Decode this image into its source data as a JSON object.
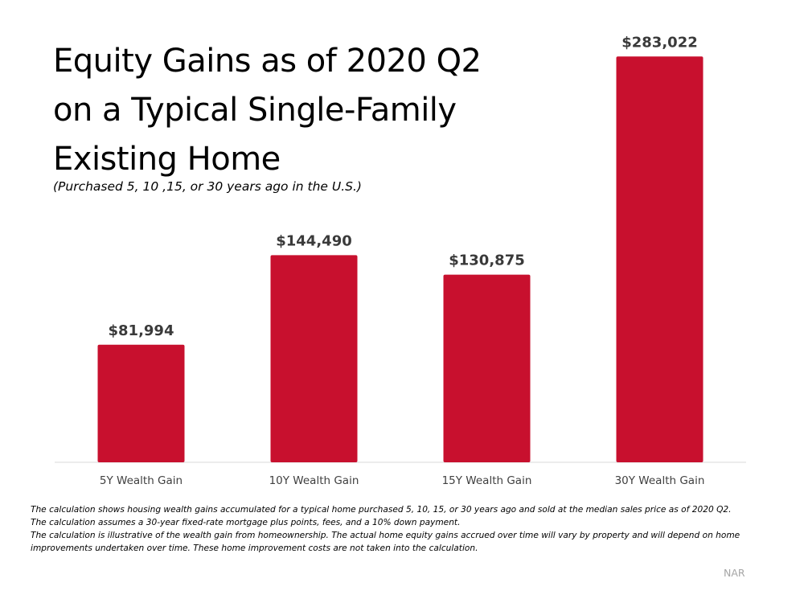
{
  "chart_data": {
    "type": "bar",
    "title_lines": [
      "Equity Gains as of 2020 Q2",
      "on a Typical Single-Family",
      "Existing Home"
    ],
    "subtitle": "(Purchased 5, 10 ,15, or 30 years ago in the U.S.)",
    "categories": [
      "5Y Wealth Gain",
      "10Y Wealth Gain",
      "15Y Wealth Gain",
      "30Y Wealth Gain"
    ],
    "values": [
      81994,
      144490,
      130875,
      283022
    ],
    "data_labels": [
      "$81,994",
      "$144,490",
      "$130,875",
      "$283,022"
    ],
    "ylim": [
      0,
      300000
    ],
    "grid": false,
    "xlabel": "",
    "ylabel": "",
    "bar_color": "#c8102e"
  },
  "notes": [
    "The calculation shows housing wealth gains accumulated for a typical home purchased 5, 10, 15, or 30 years ago and sold at the median sales price as of 2020 Q2.",
    "The calculation assumes a 30-year fixed-rate mortgage plus points, fees, and a 10% down payment.",
    "The calculation is illustrative of the wealth gain from homeownership. The actual home equity gains accrued over time will vary by property and will depend on home improvements undertaken over time. These home improvement costs are not taken into the calculation."
  ],
  "source": "NAR"
}
